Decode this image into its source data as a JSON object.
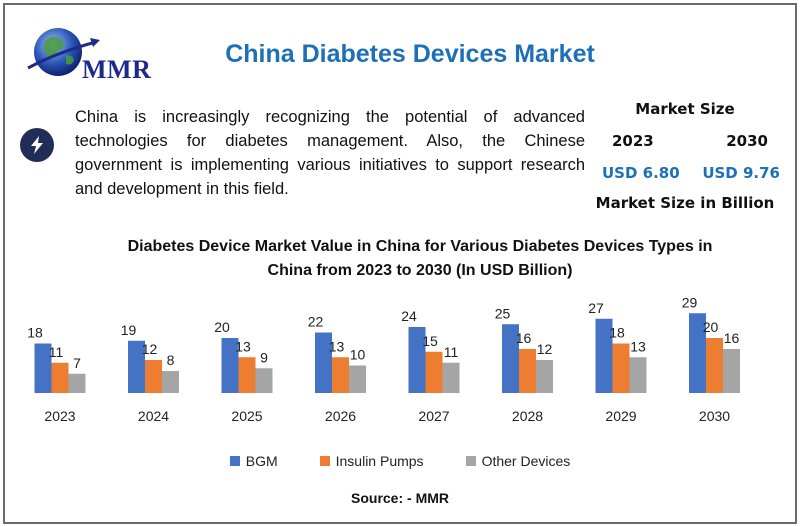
{
  "header": {
    "logo_text": "MMR",
    "title": "China Diabetes Devices Market"
  },
  "intro": {
    "icon": "lightning-bolt-icon",
    "text": "China is increasingly recognizing the potential of advanced technologies for diabetes management. Also, the Chinese government is implementing various initiatives to support research and development in this field."
  },
  "market_size": {
    "title": "Market Size",
    "year_start": "2023",
    "year_end": "2030",
    "value_start": "USD 6.80",
    "value_end": "USD 9.76",
    "footer": "Market Size in Billion"
  },
  "chart_data": {
    "type": "bar",
    "title": "Diabetes Device Market Value in China for Various Diabetes Devices Types in China from 2023 to 2030 (In USD Billion)",
    "categories": [
      "2023",
      "2024",
      "2025",
      "2026",
      "2027",
      "2028",
      "2029",
      "2030"
    ],
    "series": [
      {
        "name": "BGM",
        "color": "#4472c4",
        "values": [
          18,
          19,
          20,
          22,
          24,
          25,
          27,
          29
        ]
      },
      {
        "name": "Insulin Pumps",
        "color": "#ed7d31",
        "values": [
          11,
          12,
          13,
          13,
          15,
          16,
          18,
          20
        ]
      },
      {
        "name": "Other Devices",
        "color": "#a5a5a5",
        "values": [
          7,
          8,
          9,
          10,
          11,
          12,
          13,
          16
        ]
      }
    ],
    "xlabel": "",
    "ylabel": "",
    "legend_position": "bottom",
    "grid": false
  },
  "source": "Source: - MMR"
}
